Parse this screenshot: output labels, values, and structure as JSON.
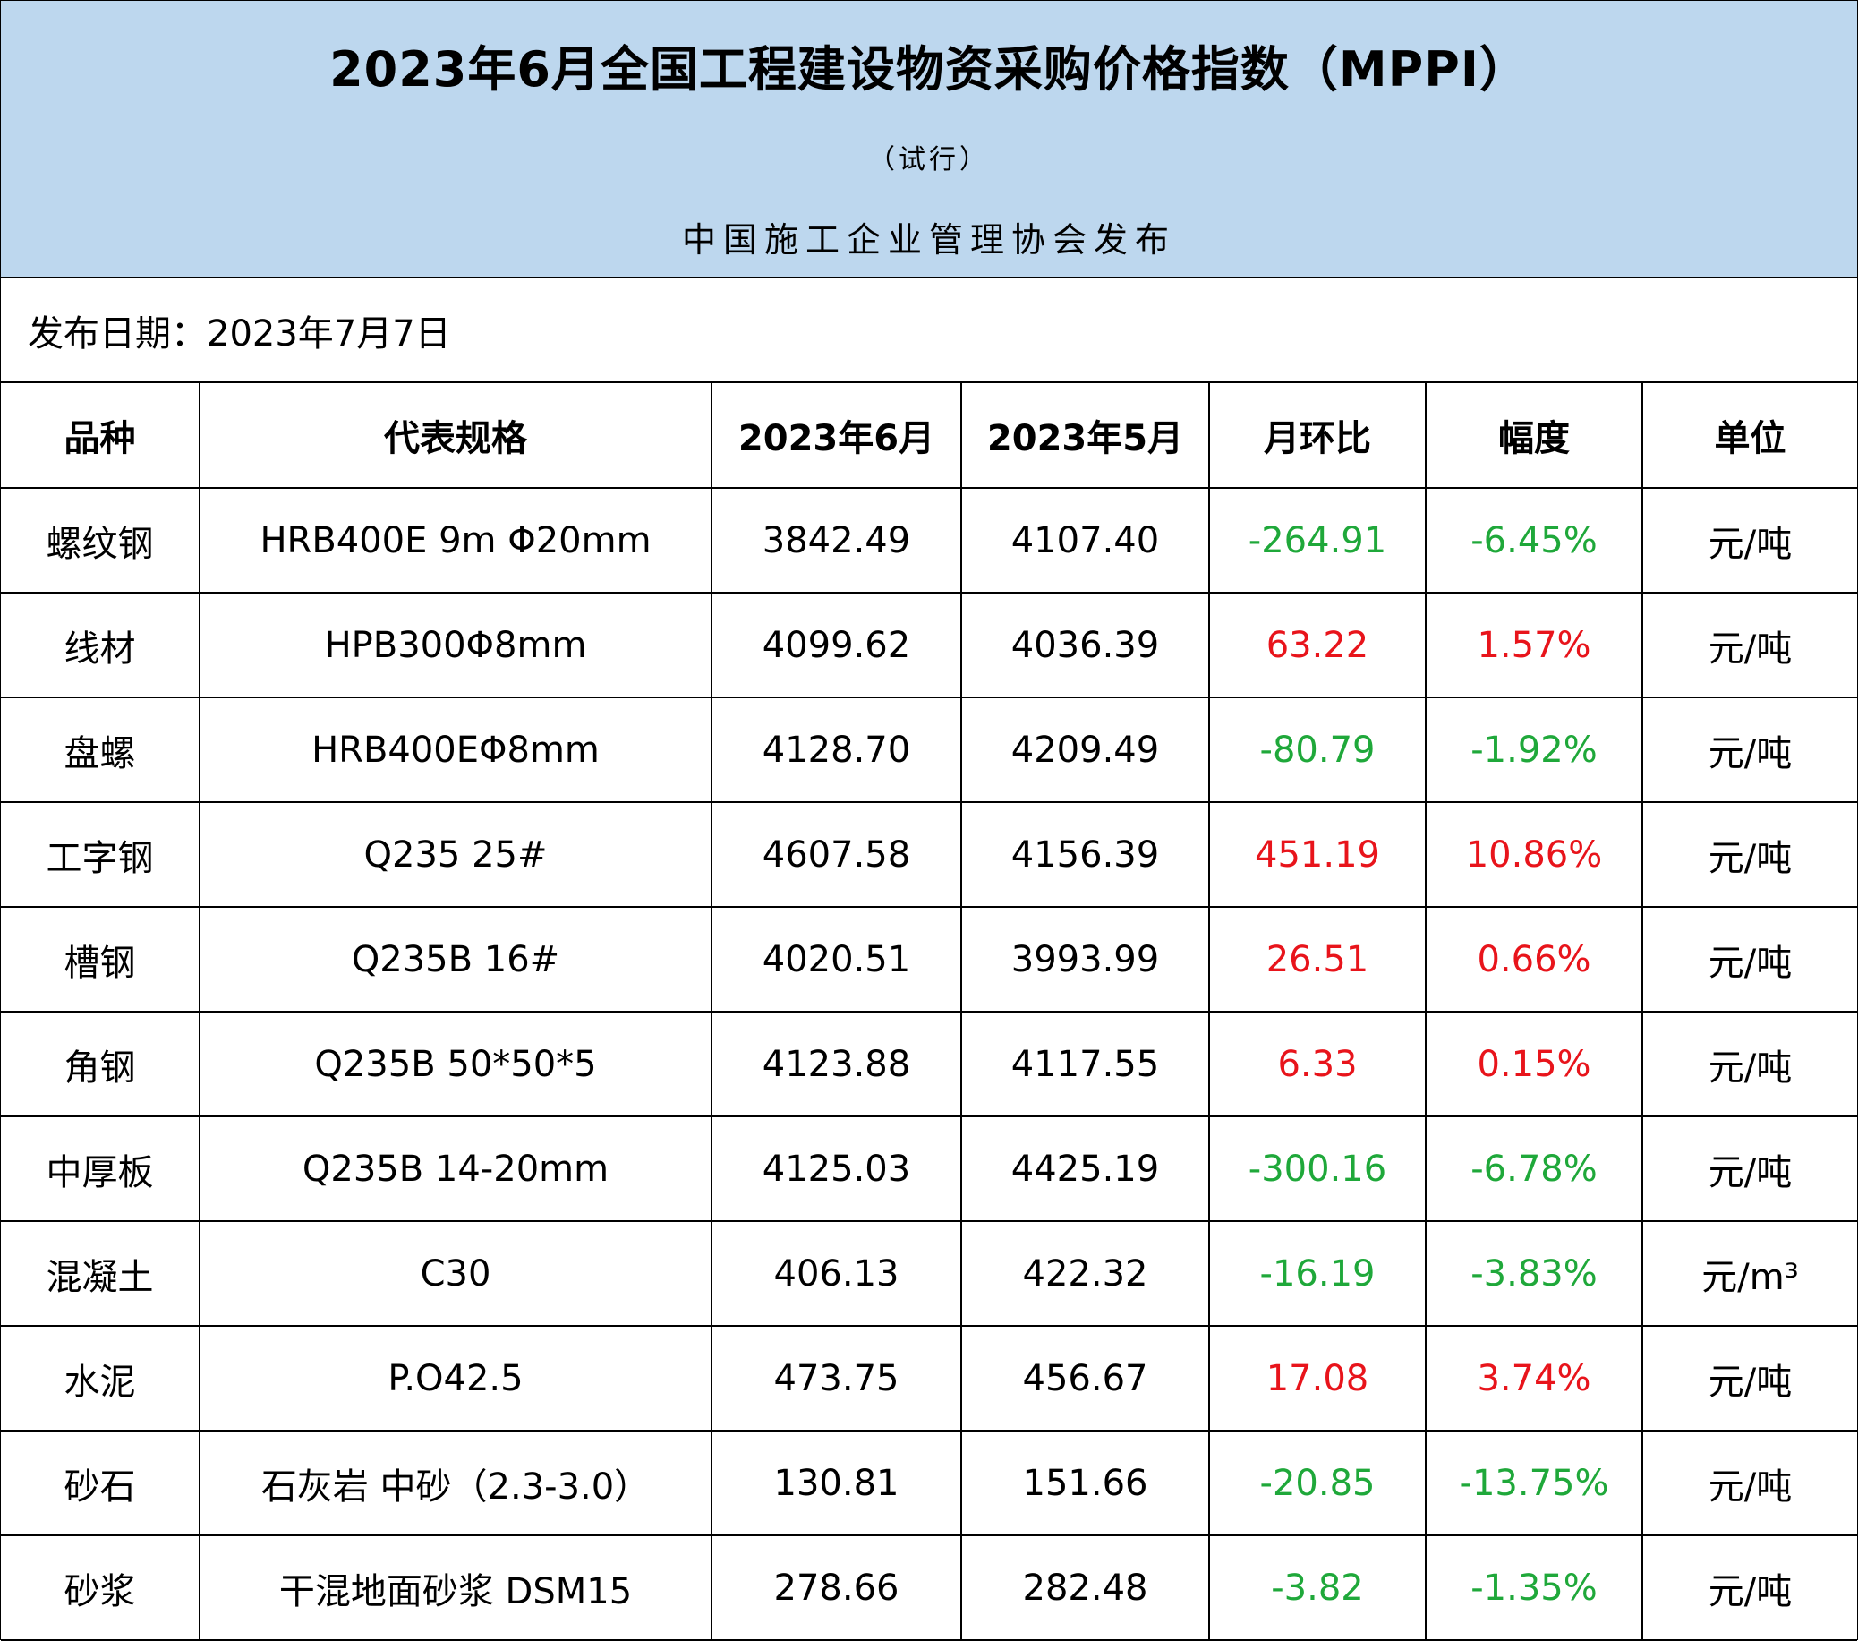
{
  "header": {
    "title": "2023年6月全国工程建设物资采购价格指数（MPPI）",
    "subtitle": "（试行）",
    "publisher": "中国施工企业管理协会发布"
  },
  "publish_date": "发布日期：2023年7月7日",
  "columns": [
    "品种",
    "代表规格",
    "2023年6月",
    "2023年5月",
    "月环比",
    "幅度",
    "单位"
  ],
  "colors": {
    "up": "#e8141b",
    "down": "#1fa83a",
    "banner": "#bdd7ee"
  },
  "rows": [
    {
      "item": "螺纹钢",
      "spec": "HRB400E 9m Φ20mm",
      "jun": "3842.49",
      "may": "4107.40",
      "mom": "-264.91",
      "pct": "-6.45%",
      "unit": "元/吨",
      "trend": "down"
    },
    {
      "item": "线材",
      "spec": "HPB300Φ8mm",
      "jun": "4099.62",
      "may": "4036.39",
      "mom": "63.22",
      "pct": "1.57%",
      "unit": "元/吨",
      "trend": "up"
    },
    {
      "item": "盘螺",
      "spec": "HRB400EΦ8mm",
      "jun": "4128.70",
      "may": "4209.49",
      "mom": "-80.79",
      "pct": "-1.92%",
      "unit": "元/吨",
      "trend": "down"
    },
    {
      "item": "工字钢",
      "spec": "Q235 25#",
      "jun": "4607.58",
      "may": "4156.39",
      "mom": "451.19",
      "pct": "10.86%",
      "unit": "元/吨",
      "trend": "up"
    },
    {
      "item": "槽钢",
      "spec": "Q235B 16#",
      "jun": "4020.51",
      "may": "3993.99",
      "mom": "26.51",
      "pct": "0.66%",
      "unit": "元/吨",
      "trend": "up"
    },
    {
      "item": "角钢",
      "spec": "Q235B 50*50*5",
      "jun": "4123.88",
      "may": "4117.55",
      "mom": "6.33",
      "pct": "0.15%",
      "unit": "元/吨",
      "trend": "up"
    },
    {
      "item": "中厚板",
      "spec": "Q235B 14-20mm",
      "jun": "4125.03",
      "may": "4425.19",
      "mom": "-300.16",
      "pct": "-6.78%",
      "unit": "元/吨",
      "trend": "down"
    },
    {
      "item": "混凝土",
      "spec": "C30",
      "jun": "406.13",
      "may": "422.32",
      "mom": "-16.19",
      "pct": "-3.83%",
      "unit": "元/m³",
      "trend": "down"
    },
    {
      "item": "水泥",
      "spec": "P.O42.5",
      "jun": "473.75",
      "may": "456.67",
      "mom": "17.08",
      "pct": "3.74%",
      "unit": "元/吨",
      "trend": "up"
    },
    {
      "item": "砂石",
      "spec": "石灰岩 中砂（2.3-3.0）",
      "jun": "130.81",
      "may": "151.66",
      "mom": "-20.85",
      "pct": "-13.75%",
      "unit": "元/吨",
      "trend": "down"
    },
    {
      "item": "砂浆",
      "spec": "干混地面砂浆 DSM15",
      "jun": "278.66",
      "may": "282.48",
      "mom": "-3.82",
      "pct": "-1.35%",
      "unit": "元/吨",
      "trend": "down"
    }
  ]
}
